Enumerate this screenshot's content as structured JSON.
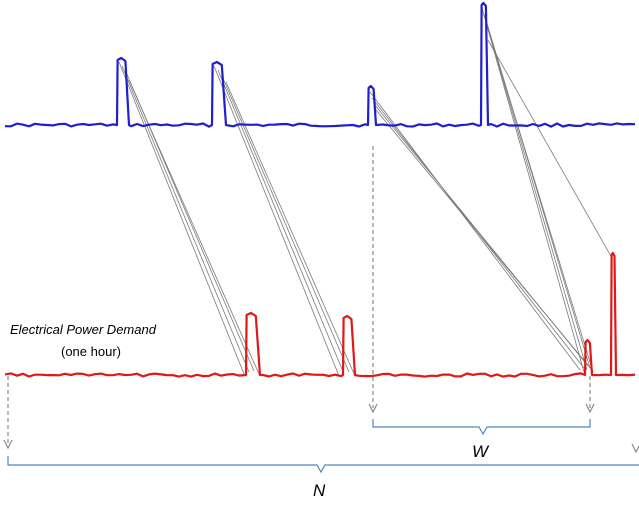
{
  "labels": {
    "signal_title": "Electrical Power Demand",
    "signal_subtitle": "(one hour)",
    "window_label": "W",
    "total_label": "N"
  },
  "colors": {
    "query_series": "#1f1fd0",
    "target_series": "#e01818",
    "connector": "#7a7a7a",
    "brace": "#4f86c6",
    "marker_arrow": "#8a8a8a"
  }
}
